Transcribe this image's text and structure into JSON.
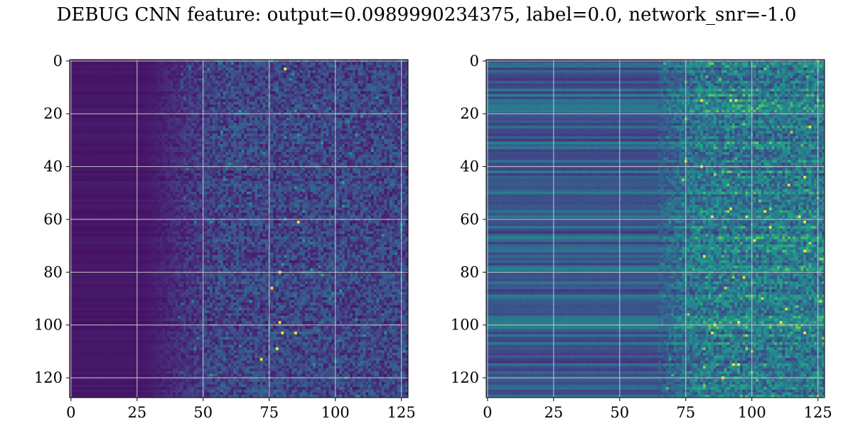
{
  "figure": {
    "title": "DEBUG CNN feature: output=0.0989990234375, label=0.0, network_snr=-1.0"
  },
  "chart_data": [
    {
      "type": "heatmap",
      "title": "",
      "xlabel": "",
      "ylabel": "",
      "rows": 128,
      "cols": 128,
      "xlim": [
        -0.5,
        127.5
      ],
      "ylim": [
        127.5,
        -0.5
      ],
      "y_inverted": true,
      "grid": true,
      "colormap": "viridis",
      "xticks": [
        0,
        25,
        50,
        75,
        100,
        125
      ],
      "yticks": [
        0,
        20,
        40,
        60,
        80,
        100,
        120
      ],
      "profile": {
        "note_values": "normalized intensity 0-1",
        "onset_col": 40,
        "base_level": 0.06,
        "noise_level": 0.35,
        "row_banding": 0.04
      },
      "hotspots": [
        {
          "col": 81,
          "row": 3
        },
        {
          "col": 86,
          "row": 61
        },
        {
          "col": 76,
          "row": 86
        },
        {
          "col": 79,
          "row": 99
        },
        {
          "col": 80,
          "row": 103
        },
        {
          "col": 85,
          "row": 103
        },
        {
          "col": 78,
          "row": 109
        },
        {
          "col": 72,
          "row": 113
        },
        {
          "col": 79,
          "row": 80
        }
      ]
    },
    {
      "type": "heatmap",
      "title": "",
      "xlabel": "",
      "ylabel": "",
      "rows": 128,
      "cols": 128,
      "xlim": [
        -0.5,
        127.5
      ],
      "ylim": [
        127.5,
        -0.5
      ],
      "y_inverted": true,
      "grid": true,
      "colormap": "viridis",
      "xticks": [
        0,
        25,
        50,
        75,
        100,
        125
      ],
      "yticks": [
        0,
        20,
        40,
        60,
        80,
        100,
        120
      ],
      "profile": {
        "note_values": "normalized intensity 0-1",
        "onset_col": 65,
        "base_level": 0.18,
        "noise_level": 0.45,
        "row_banding": 0.22
      },
      "hotspots": [
        {
          "col": 81,
          "row": 15
        },
        {
          "col": 92,
          "row": 15
        },
        {
          "col": 94,
          "row": 15
        },
        {
          "col": 81,
          "row": 40
        },
        {
          "col": 101,
          "row": 68
        },
        {
          "col": 93,
          "row": 115
        },
        {
          "col": 95,
          "row": 115
        },
        {
          "col": 118,
          "row": 59
        },
        {
          "col": 114,
          "row": 47
        },
        {
          "col": 85,
          "row": 103
        },
        {
          "col": 120,
          "row": 103
        }
      ]
    }
  ]
}
